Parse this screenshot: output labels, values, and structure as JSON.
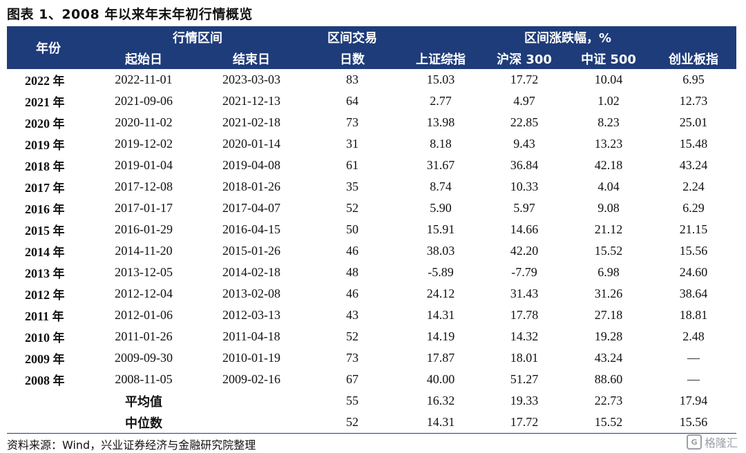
{
  "title": "图表 1、2008 年以来年末年初行情概览",
  "headers": {
    "year": "年份",
    "range_group": "行情区间",
    "start": "起始日",
    "end": "结束日",
    "days_line1": "区间交易",
    "days_line2": "日数",
    "change_group": "区间涨跌幅，%",
    "sh": "上证综指",
    "hs300": "沪深 300",
    "zz500": "中证 500",
    "cyb": "创业板指"
  },
  "rows": [
    {
      "year": "2022",
      "unit": "年",
      "start": "2022-11-01",
      "end": "2023-03-03",
      "days": "83",
      "sh": "15.03",
      "hs300": "17.72",
      "zz500": "10.04",
      "cyb": "6.95"
    },
    {
      "year": "2021",
      "unit": "年",
      "start": "2021-09-06",
      "end": "2021-12-13",
      "days": "64",
      "sh": "2.77",
      "hs300": "4.97",
      "zz500": "1.02",
      "cyb": "12.73"
    },
    {
      "year": "2020",
      "unit": "年",
      "start": "2020-11-02",
      "end": "2021-02-18",
      "days": "73",
      "sh": "13.98",
      "hs300": "22.85",
      "zz500": "8.23",
      "cyb": "25.01"
    },
    {
      "year": "2019",
      "unit": "年",
      "start": "2019-12-02",
      "end": "2020-01-14",
      "days": "31",
      "sh": "8.18",
      "hs300": "9.43",
      "zz500": "13.23",
      "cyb": "15.48"
    },
    {
      "year": "2018",
      "unit": "年",
      "start": "2019-01-04",
      "end": "2019-04-08",
      "days": "61",
      "sh": "31.67",
      "hs300": "36.84",
      "zz500": "42.18",
      "cyb": "43.24"
    },
    {
      "year": "2017",
      "unit": "年",
      "start": "2017-12-08",
      "end": "2018-01-26",
      "days": "35",
      "sh": "8.74",
      "hs300": "10.33",
      "zz500": "4.04",
      "cyb": "2.24"
    },
    {
      "year": "2016",
      "unit": "年",
      "start": "2017-01-17",
      "end": "2017-04-07",
      "days": "52",
      "sh": "5.90",
      "hs300": "5.97",
      "zz500": "9.08",
      "cyb": "6.29"
    },
    {
      "year": "2015",
      "unit": "年",
      "start": "2016-01-29",
      "end": "2016-04-15",
      "days": "50",
      "sh": "15.91",
      "hs300": "14.66",
      "zz500": "21.12",
      "cyb": "21.15"
    },
    {
      "year": "2014",
      "unit": "年",
      "start": "2014-11-20",
      "end": "2015-01-26",
      "days": "46",
      "sh": "38.03",
      "hs300": "42.20",
      "zz500": "15.52",
      "cyb": "15.56"
    },
    {
      "year": "2013",
      "unit": "年",
      "start": "2013-12-05",
      "end": "2014-02-18",
      "days": "48",
      "sh": "-5.89",
      "hs300": "-7.79",
      "zz500": "6.98",
      "cyb": "24.60"
    },
    {
      "year": "2012",
      "unit": "年",
      "start": "2012-12-04",
      "end": "2013-02-08",
      "days": "46",
      "sh": "24.12",
      "hs300": "31.43",
      "zz500": "31.26",
      "cyb": "38.64"
    },
    {
      "year": "2011",
      "unit": "年",
      "start": "2012-01-06",
      "end": "2012-03-13",
      "days": "43",
      "sh": "14.31",
      "hs300": "17.78",
      "zz500": "27.18",
      "cyb": "18.81"
    },
    {
      "year": "2010",
      "unit": "年",
      "start": "2011-01-26",
      "end": "2011-04-18",
      "days": "52",
      "sh": "14.19",
      "hs300": "14.32",
      "zz500": "19.28",
      "cyb": "2.48"
    },
    {
      "year": "2009",
      "unit": "年",
      "start": "2009-09-30",
      "end": "2010-01-19",
      "days": "73",
      "sh": "17.87",
      "hs300": "18.01",
      "zz500": "43.24",
      "cyb": "—"
    },
    {
      "year": "2008",
      "unit": "年",
      "start": "2008-11-05",
      "end": "2009-02-16",
      "days": "67",
      "sh": "40.00",
      "hs300": "51.27",
      "zz500": "88.60",
      "cyb": "—"
    }
  ],
  "summary": [
    {
      "label": "平均值",
      "days": "55",
      "sh": "16.32",
      "hs300": "19.33",
      "zz500": "22.73",
      "cyb": "17.94"
    },
    {
      "label": "中位数",
      "days": "52",
      "sh": "14.31",
      "hs300": "17.72",
      "zz500": "15.52",
      "cyb": "15.56"
    }
  ],
  "source": "资料来源：Wind，兴业证券经济与金融研究院整理",
  "watermark": "格隆汇",
  "watermark_logo": "G"
}
